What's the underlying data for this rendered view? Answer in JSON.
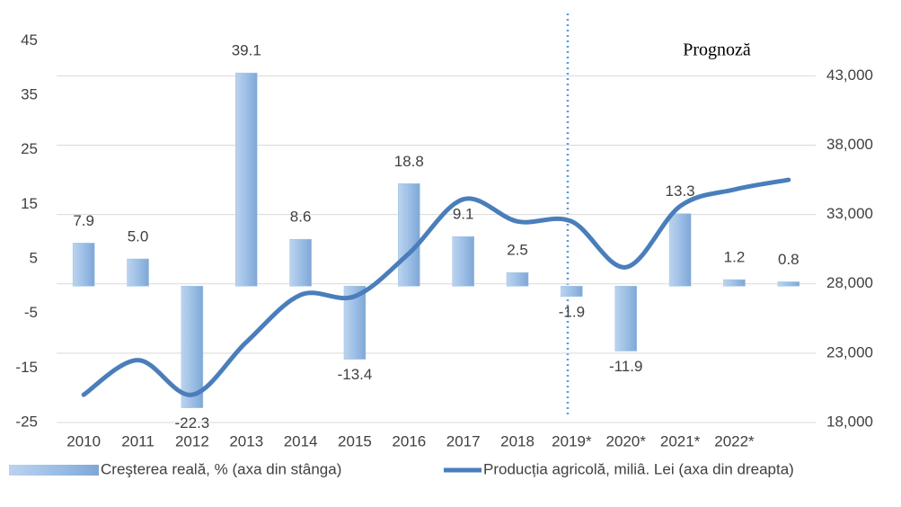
{
  "chart_data": {
    "type": "bar_line",
    "categories": [
      "2010",
      "2011",
      "2012",
      "2013",
      "2014",
      "2015",
      "2016",
      "2017",
      "2018",
      "2019*",
      "2020*",
      "2021*",
      "2022*",
      null
    ],
    "series": [
      {
        "name": "Creşterea reală, % (axa din stânga)",
        "type": "bar",
        "color": "#9dc3e6",
        "axis": "y",
        "values": [
          7.9,
          5.0,
          -22.3,
          39.1,
          8.6,
          -13.4,
          18.8,
          9.1,
          2.5,
          -1.9,
          -11.9,
          13.3,
          1.2,
          0.8
        ],
        "value_labels": [
          "7.9",
          "5.0",
          "-22.3",
          "39.1",
          "8.6",
          "-13.4",
          "18.8",
          "9.1",
          "2.5",
          "-1.9",
          "-11.9",
          "13.3",
          "1.2",
          "0.8"
        ]
      },
      {
        "name": "Producția agricolă, miliâ. Lei (axa din dreapta)",
        "type": "line",
        "color": "#4a7ebb",
        "axis": "y2",
        "values": [
          20000,
          22500,
          20000,
          23800,
          27200,
          27100,
          30200,
          34100,
          32500,
          32500,
          29200,
          33600,
          34800,
          35500
        ]
      }
    ],
    "annotations": [
      "Prognoză"
    ],
    "ylim": [
      -25,
      50
    ],
    "yticks": [
      45,
      35,
      25,
      15,
      5,
      -5,
      -15,
      -25
    ],
    "y2lim": [
      18000,
      47500
    ],
    "y2ticks": [
      {
        "value": 43000,
        "label": "43,000"
      },
      {
        "value": 38000,
        "label": "38,000"
      },
      {
        "value": 33000,
        "label": "33,000"
      },
      {
        "value": 28000,
        "label": "28,000"
      },
      {
        "value": 23000,
        "label": "23,000"
      },
      {
        "value": 18000,
        "label": "18,000"
      }
    ],
    "grid": true,
    "legend": "bottom"
  }
}
